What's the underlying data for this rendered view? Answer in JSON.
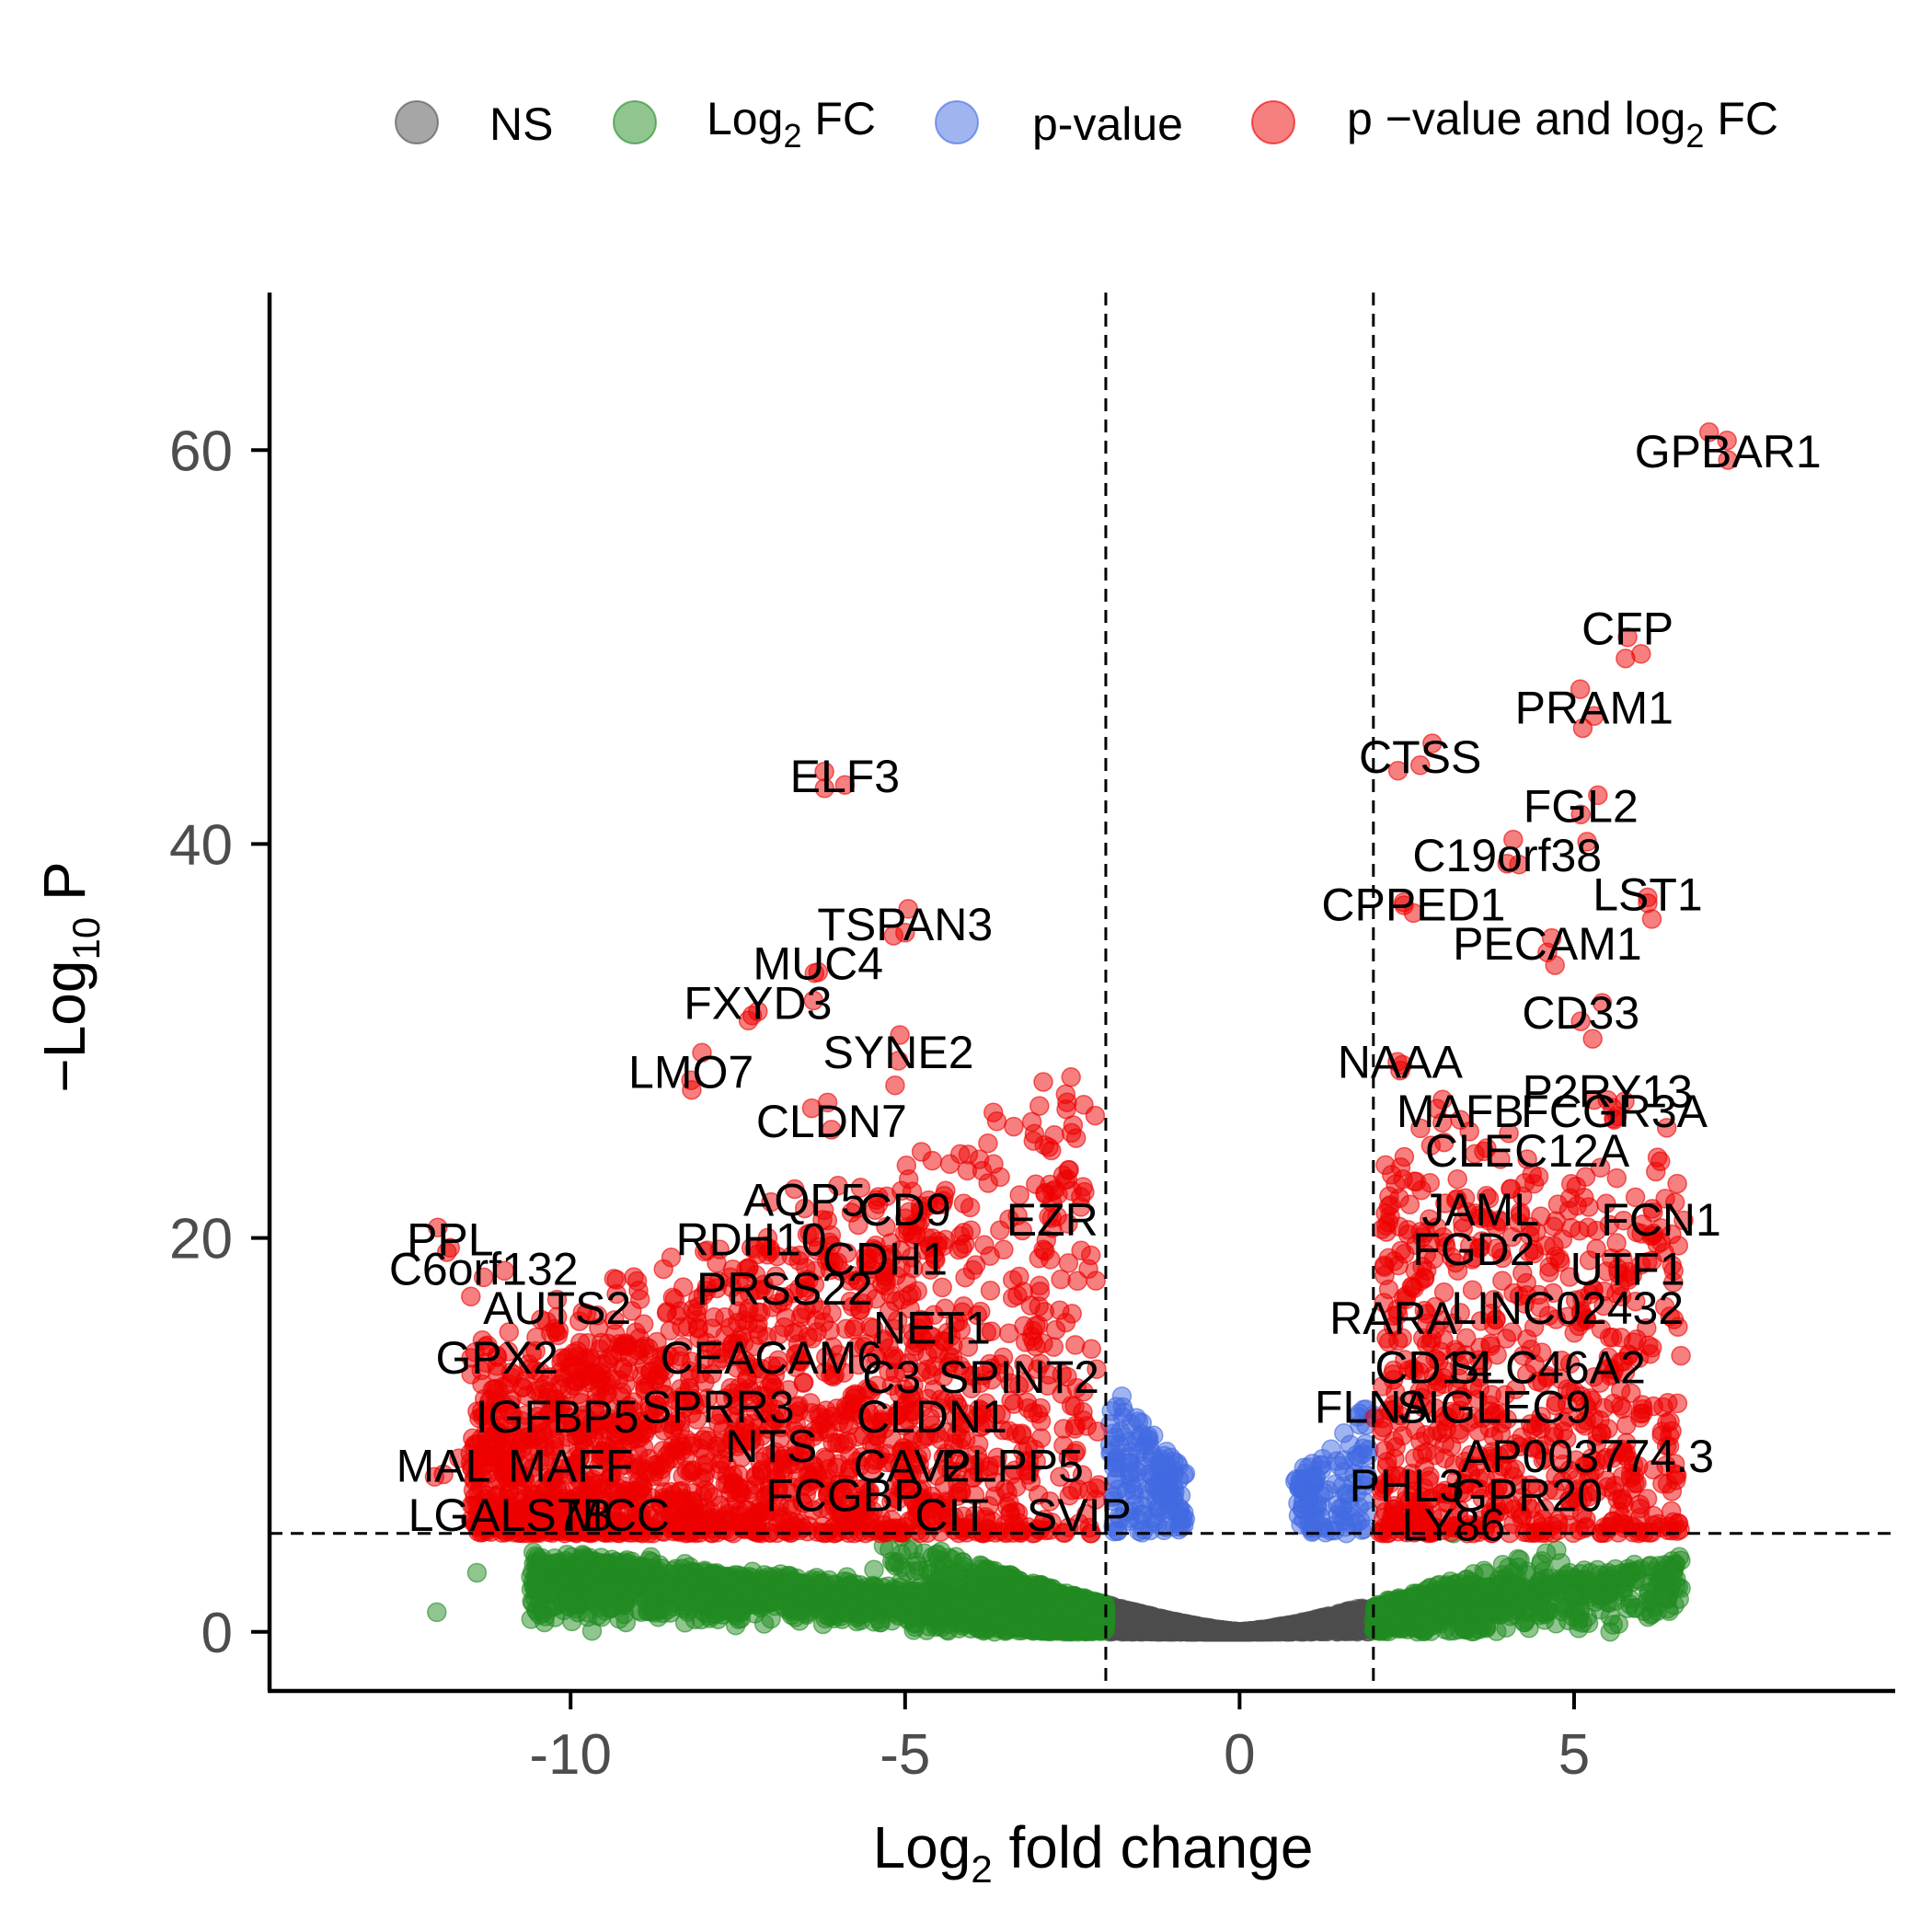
{
  "chart_data": {
    "type": "scatter",
    "xlabel": "Log2 fold change",
    "ylabel": "-Log10 P",
    "xlim": [
      -14.5,
      9.8
    ],
    "ylim": [
      -3,
      68
    ],
    "xticks": [
      -10,
      -5,
      0,
      5
    ],
    "yticks": [
      0,
      20,
      40,
      60
    ],
    "tick_labels_x": [
      "-10",
      "-5",
      "0",
      "5"
    ],
    "tick_labels_y": [
      "0",
      "20",
      "40",
      "60"
    ],
    "fc_cutoff": 2,
    "p_cutoff": 5,
    "grid": false,
    "legend_position": "top",
    "legend": [
      {
        "key": "ns",
        "label": "NS",
        "color": "#4d4d4d"
      },
      {
        "key": "fc",
        "label": "Log2 FC",
        "color": "#228b22"
      },
      {
        "key": "p",
        "label": "p-value",
        "color": "#4169e1"
      },
      {
        "key": "both",
        "label": "p−value and log2 FC",
        "color": "#ee0000"
      }
    ],
    "labeled_genes": [
      {
        "name": "GPBAR1",
        "x": 7.3,
        "y": 59.5
      },
      {
        "name": "CFP",
        "x": 5.8,
        "y": 50.5
      },
      {
        "name": "PRAM1",
        "x": 5.3,
        "y": 46.5
      },
      {
        "name": "CTSS",
        "x": 2.7,
        "y": 44.0
      },
      {
        "name": "ELF3",
        "x": -5.9,
        "y": 43.0
      },
      {
        "name": "FGL2",
        "x": 5.1,
        "y": 41.5
      },
      {
        "name": "C19orf38",
        "x": 4.0,
        "y": 39.0
      },
      {
        "name": "CPPED1",
        "x": 2.6,
        "y": 36.5
      },
      {
        "name": "LST1",
        "x": 6.1,
        "y": 37.0
      },
      {
        "name": "TSPAN3",
        "x": -5.0,
        "y": 35.5
      },
      {
        "name": "PECAM1",
        "x": 4.6,
        "y": 34.5
      },
      {
        "name": "MUC4",
        "x": -6.3,
        "y": 33.5
      },
      {
        "name": "FXYD3",
        "x": -7.2,
        "y": 31.5
      },
      {
        "name": "CD33",
        "x": 5.1,
        "y": 31.0
      },
      {
        "name": "NAAA",
        "x": 2.4,
        "y": 28.5
      },
      {
        "name": "SYNE2",
        "x": -5.1,
        "y": 29.0
      },
      {
        "name": "LMO7",
        "x": -8.2,
        "y": 28.0
      },
      {
        "name": "P2RY13",
        "x": 5.5,
        "y": 27.0
      },
      {
        "name": "MAFB",
        "x": 3.3,
        "y": 26.0
      },
      {
        "name": "FCGR3A",
        "x": 5.6,
        "y": 26.0
      },
      {
        "name": "CLDN7",
        "x": -6.1,
        "y": 25.5
      },
      {
        "name": "CLEC12A",
        "x": 4.3,
        "y": 24.0
      },
      {
        "name": "AQP5",
        "x": -6.5,
        "y": 21.5
      },
      {
        "name": "CD9",
        "x": -5.0,
        "y": 21.0
      },
      {
        "name": "JAML",
        "x": 3.6,
        "y": 21.0
      },
      {
        "name": "EZR",
        "x": -2.8,
        "y": 20.5
      },
      {
        "name": "FCN1",
        "x": 6.3,
        "y": 20.5
      },
      {
        "name": "PPL",
        "x": -11.8,
        "y": 19.5
      },
      {
        "name": "RDH10",
        "x": -7.3,
        "y": 19.5
      },
      {
        "name": "FGD2",
        "x": 3.5,
        "y": 19.0
      },
      {
        "name": "CDH1",
        "x": -5.3,
        "y": 18.5
      },
      {
        "name": "UTF1",
        "x": 5.8,
        "y": 18.0
      },
      {
        "name": "C6orf132",
        "x": -11.3,
        "y": 18.0
      },
      {
        "name": "PRSS22",
        "x": -6.8,
        "y": 17.0
      },
      {
        "name": "AUTS2",
        "x": -10.2,
        "y": 16.0
      },
      {
        "name": "LINC02432",
        "x": 4.9,
        "y": 16.0
      },
      {
        "name": "RARA",
        "x": 2.3,
        "y": 15.5
      },
      {
        "name": "NET1",
        "x": -4.6,
        "y": 15.0
      },
      {
        "name": "GPX2",
        "x": -11.1,
        "y": 13.5
      },
      {
        "name": "CEACAM6",
        "x": -7.0,
        "y": 13.5
      },
      {
        "name": "CD14",
        "x": 2.9,
        "y": 13.0
      },
      {
        "name": "SLC46A2",
        "x": 4.6,
        "y": 13.0
      },
      {
        "name": "C3",
        "x": -5.2,
        "y": 12.5
      },
      {
        "name": "SPINT2",
        "x": -3.3,
        "y": 12.5
      },
      {
        "name": "FLNA",
        "x": 2.0,
        "y": 11.0
      },
      {
        "name": "SIGLEC9",
        "x": 3.8,
        "y": 11.0
      },
      {
        "name": "SPRR3",
        "x": -7.8,
        "y": 11.0
      },
      {
        "name": "IGFBP5",
        "x": -10.2,
        "y": 10.5
      },
      {
        "name": "CLDN1",
        "x": -4.6,
        "y": 10.5
      },
      {
        "name": "NTS",
        "x": -7.0,
        "y": 9.0
      },
      {
        "name": "AP003774.3",
        "x": 5.2,
        "y": 8.5
      },
      {
        "name": "MAL",
        "x": -11.9,
        "y": 8.0
      },
      {
        "name": "MAFF",
        "x": -10.0,
        "y": 8.0
      },
      {
        "name": "CAV2",
        "x": -4.9,
        "y": 8.0
      },
      {
        "name": "PLPP5",
        "x": -3.4,
        "y": 8.0
      },
      {
        "name": "PHL3",
        "x": 2.5,
        "y": 7.0
      },
      {
        "name": "FCGBP",
        "x": -5.9,
        "y": 6.5
      },
      {
        "name": "GPR20",
        "x": 4.3,
        "y": 6.5
      },
      {
        "name": "LGALS7B",
        "x": -10.9,
        "y": 5.5
      },
      {
        "name": "MCC",
        "x": -9.3,
        "y": 5.5
      },
      {
        "name": "SVIP",
        "x": -2.4,
        "y": 5.5
      },
      {
        "name": "CIT",
        "x": -4.3,
        "y": 5.5
      },
      {
        "name": "LY86",
        "x": 3.2,
        "y": 5.0
      }
    ]
  }
}
